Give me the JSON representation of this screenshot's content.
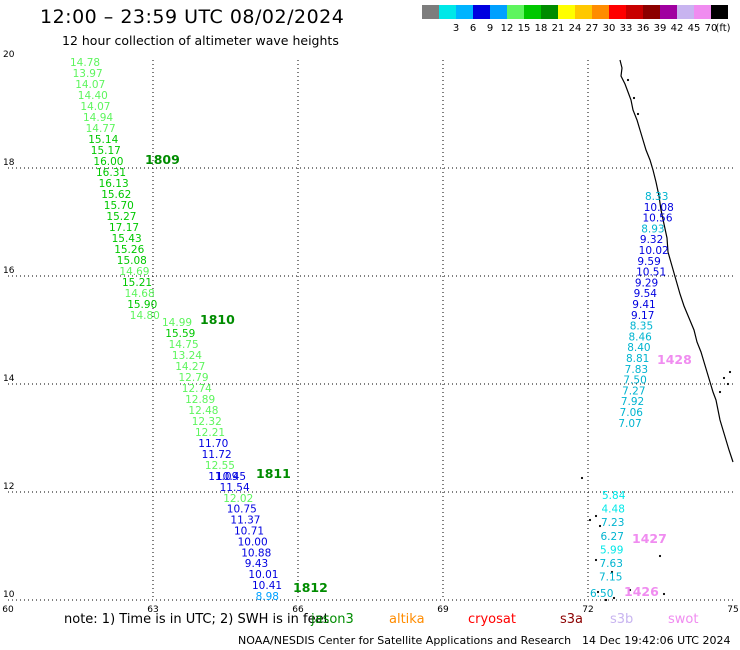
{
  "header": {
    "title": "12:00 – 23:59 UTC 08/02/2024",
    "subtitle": "12 hour collection of altimeter wave heights"
  },
  "colorbar": {
    "unit": "(ft)",
    "swatches": [
      {
        "label": "",
        "color": "#7d7d7d"
      },
      {
        "label": "3",
        "color": "#00e8e8"
      },
      {
        "label": "6",
        "color": "#00b4ff"
      },
      {
        "label": "9",
        "color": "#0000e0"
      },
      {
        "label": "12",
        "color": "#00a0ff"
      },
      {
        "label": "15",
        "color": "#5ef55e"
      },
      {
        "label": "18",
        "color": "#00c800"
      },
      {
        "label": "21",
        "color": "#008c00"
      },
      {
        "label": "24",
        "color": "#ffff00"
      },
      {
        "label": "27",
        "color": "#ffc800"
      },
      {
        "label": "30",
        "color": "#ff8c00"
      },
      {
        "label": "33",
        "color": "#ff0000"
      },
      {
        "label": "36",
        "color": "#c80000"
      },
      {
        "label": "39",
        "color": "#8c0000"
      },
      {
        "label": "42",
        "color": "#a000a0"
      },
      {
        "label": "45",
        "color": "#c8b4f0"
      },
      {
        "label": "70",
        "color": "#f08cf0"
      },
      {
        "label": "",
        "color": "#000000"
      }
    ]
  },
  "axes": {
    "lon_ticks": [
      "60",
      "63",
      "66",
      "69",
      "72",
      "75"
    ],
    "lat_ticks": [
      "20",
      "18",
      "16",
      "14",
      "12",
      "10"
    ]
  },
  "tracks": [
    {
      "id": "track-1809",
      "label": "1809",
      "label_color": "#008c00",
      "values": [
        {
          "v": "14.78",
          "c": "#5ef55e"
        },
        {
          "v": "13.97",
          "c": "#5ef55e"
        },
        {
          "v": "14.07",
          "c": "#5ef55e"
        },
        {
          "v": "14.40",
          "c": "#5ef55e"
        },
        {
          "v": "14.07",
          "c": "#5ef55e"
        },
        {
          "v": "14.94",
          "c": "#5ef55e"
        },
        {
          "v": "14.77",
          "c": "#5ef55e"
        },
        {
          "v": "15.14",
          "c": "#00c800"
        },
        {
          "v": "15.17",
          "c": "#00c800"
        },
        {
          "v": "16.00",
          "c": "#00c800"
        },
        {
          "v": "16.31",
          "c": "#00c800"
        },
        {
          "v": "16.13",
          "c": "#00c800"
        },
        {
          "v": "15.62",
          "c": "#00c800"
        },
        {
          "v": "15.70",
          "c": "#00c800"
        },
        {
          "v": "15.27",
          "c": "#00c800"
        },
        {
          "v": "17.17",
          "c": "#00c800"
        },
        {
          "v": "15.43",
          "c": "#00c800"
        },
        {
          "v": "15.26",
          "c": "#00c800"
        },
        {
          "v": "15.08",
          "c": "#00c800"
        },
        {
          "v": "14.69",
          "c": "#5ef55e"
        },
        {
          "v": "15.21",
          "c": "#00c800"
        },
        {
          "v": "14.68",
          "c": "#5ef55e"
        },
        {
          "v": "15.90",
          "c": "#00c800"
        },
        {
          "v": "14.80",
          "c": "#5ef55e"
        }
      ]
    },
    {
      "id": "track-1810",
      "label": "1810",
      "label_color": "#008c00",
      "values": [
        {
          "v": "14.99",
          "c": "#5ef55e"
        },
        {
          "v": "15.59",
          "c": "#00c800"
        },
        {
          "v": "14.75",
          "c": "#5ef55e"
        },
        {
          "v": "13.24",
          "c": "#5ef55e"
        },
        {
          "v": "14.27",
          "c": "#5ef55e"
        },
        {
          "v": "12.79",
          "c": "#5ef55e"
        },
        {
          "v": "12.74",
          "c": "#5ef55e"
        },
        {
          "v": "12.89",
          "c": "#5ef55e"
        },
        {
          "v": "12.48",
          "c": "#5ef55e"
        },
        {
          "v": "12.32",
          "c": "#5ef55e"
        },
        {
          "v": "12.21",
          "c": "#5ef55e"
        },
        {
          "v": "11.70",
          "c": "#0000e0"
        },
        {
          "v": "11.72",
          "c": "#0000e0"
        },
        {
          "v": "12.55",
          "c": "#5ef55e"
        },
        {
          "v": "11.09",
          "c": "#0000e0"
        }
      ]
    },
    {
      "id": "track-1811",
      "label": "1811",
      "label_color": "#008c00",
      "values": [
        {
          "v": "10.45",
          "c": "#0000e0"
        },
        {
          "v": "11.54",
          "c": "#0000e0"
        },
        {
          "v": "12.02",
          "c": "#5ef55e"
        },
        {
          "v": "10.75",
          "c": "#0000e0"
        },
        {
          "v": "11.37",
          "c": "#0000e0"
        },
        {
          "v": "10.71",
          "c": "#0000e0"
        },
        {
          "v": "10.00",
          "c": "#0000e0"
        },
        {
          "v": "10.88",
          "c": "#0000e0"
        },
        {
          "v": "9.43",
          "c": "#0000e0"
        },
        {
          "v": "10.01",
          "c": "#0000e0"
        },
        {
          "v": "10.41",
          "c": "#0000e0"
        },
        {
          "v": "8.98",
          "c": "#00a0ff"
        }
      ]
    },
    {
      "id": "track-1812",
      "label": "1812",
      "label_color": "#008c00",
      "values": []
    },
    {
      "id": "track-1428",
      "label": "1428",
      "label_color": "#f08cf0",
      "values": [
        {
          "v": "8.33",
          "c": "#00b4d0"
        },
        {
          "v": "10.08",
          "c": "#0000e0"
        },
        {
          "v": "10.56",
          "c": "#0000e0"
        },
        {
          "v": "8.93",
          "c": "#00b4d0"
        },
        {
          "v": "9.32",
          "c": "#0000e0"
        },
        {
          "v": "10.02",
          "c": "#0000e0"
        },
        {
          "v": "9.59",
          "c": "#0000e0"
        },
        {
          "v": "10.51",
          "c": "#0000e0"
        },
        {
          "v": "9.29",
          "c": "#0000e0"
        },
        {
          "v": "9.54",
          "c": "#0000e0"
        },
        {
          "v": "9.41",
          "c": "#0000e0"
        },
        {
          "v": "9.17",
          "c": "#0000e0"
        },
        {
          "v": "8.35",
          "c": "#00b4d0"
        },
        {
          "v": "8.46",
          "c": "#00b4d0"
        },
        {
          "v": "8.40",
          "c": "#00b4d0"
        },
        {
          "v": "8.81",
          "c": "#00b4d0"
        },
        {
          "v": "7.83",
          "c": "#00b4d0"
        },
        {
          "v": "7.50",
          "c": "#00b4d0"
        },
        {
          "v": "7.27",
          "c": "#00b4d0"
        },
        {
          "v": "7.92",
          "c": "#00b4d0"
        },
        {
          "v": "7.06",
          "c": "#00b4d0"
        },
        {
          "v": "7.07",
          "c": "#00b4d0"
        }
      ]
    },
    {
      "id": "track-1427",
      "label": "1427",
      "label_color": "#f08cf0",
      "values": [
        {
          "v": "5.84",
          "c": "#00e8e8"
        },
        {
          "v": "4.48",
          "c": "#00e8e8"
        },
        {
          "v": "7.23",
          "c": "#00b4d0"
        },
        {
          "v": "6.27",
          "c": "#00b4d0"
        },
        {
          "v": "5.99",
          "c": "#00e8e8"
        },
        {
          "v": "7.63",
          "c": "#00b4d0"
        },
        {
          "v": "7.15",
          "c": "#00b4d0"
        }
      ]
    },
    {
      "id": "track-1426",
      "label": "1426",
      "label_color": "#f08cf0",
      "values": [
        {
          "v": "6.50",
          "c": "#00b4d0"
        }
      ]
    }
  ],
  "note": {
    "prefix": "note:  1) Time is in UTC; 2) SWH is in feet",
    "satellites": [
      {
        "name": "jason3",
        "color": "#008c00"
      },
      {
        "name": "altika",
        "color": "#ff8c00"
      },
      {
        "name": "cryosat",
        "color": "#ff0000"
      },
      {
        "name": "s3a",
        "color": "#8c0000"
      },
      {
        "name": "s3b",
        "color": "#c8b4f0"
      },
      {
        "name": "swot",
        "color": "#f08cf0"
      }
    ]
  },
  "footer": {
    "credits": "NOAA/NESDIS Center for Satellite Applications and Research",
    "timestamp": "14 Dec 19:42:06 UTC 2024"
  }
}
